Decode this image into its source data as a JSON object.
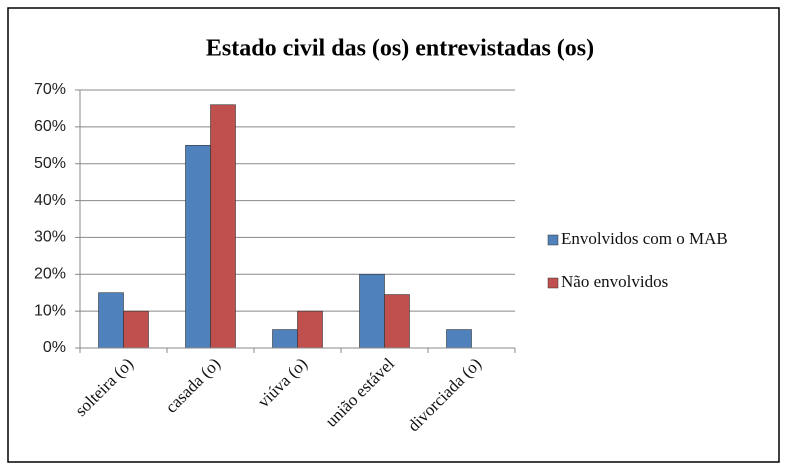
{
  "chart_data": {
    "type": "bar",
    "title": "Estado civil das (os) entrevistadas (os)",
    "categories": [
      "solteira (o)",
      "casada (o)",
      "viúva (o)",
      "união estável",
      "divorciada (o)"
    ],
    "series": [
      {
        "name": "Envolvidos com o MAB",
        "color": "#4f81bd",
        "values": [
          15,
          55,
          5,
          20,
          5
        ]
      },
      {
        "name": "Não envolvidos",
        "color": "#c0504d",
        "values": [
          10,
          66,
          10,
          14.5,
          0
        ]
      }
    ],
    "ylim": [
      0,
      70
    ],
    "yticks": [
      {
        "value": 0,
        "label": "0%"
      },
      {
        "value": 10,
        "label": "10%"
      },
      {
        "value": 20,
        "label": "20%"
      },
      {
        "value": 30,
        "label": "30%"
      },
      {
        "value": 40,
        "label": "40%"
      },
      {
        "value": 50,
        "label": "50%"
      },
      {
        "value": 60,
        "label": "60%"
      },
      {
        "value": 70,
        "label": "70%"
      }
    ],
    "grid": true,
    "legend": "right"
  }
}
